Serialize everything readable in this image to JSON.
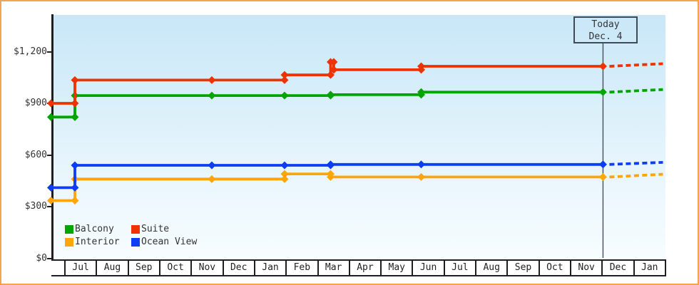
{
  "frame": {
    "border_color": "#f3a44c"
  },
  "chart_data": {
    "type": "line",
    "style": "step-after price history with forecast dashes",
    "grid": false,
    "x_axis": {
      "tick_labels": [
        "Jul",
        "Aug",
        "Sep",
        "Oct",
        "Nov",
        "Dec",
        "Jan",
        "Feb",
        "Mar",
        "Apr",
        "May",
        "Jun",
        "Jul",
        "Aug",
        "Sep",
        "Oct",
        "Nov",
        "Dec",
        "Jan"
      ]
    },
    "y_axis": {
      "tick_labels": [
        "$0",
        "$300",
        "$600",
        "$900",
        "$1,200"
      ],
      "tick_values": [
        0,
        300,
        600,
        900,
        1200
      ],
      "ylim": [
        0,
        1410
      ]
    },
    "today_marker": {
      "line1": "Today",
      "line2": "Dec. 4",
      "month_x": 16.99
    },
    "legend_position": "bottom-left",
    "series": [
      {
        "name": "Balcony",
        "color": "#00a500",
        "points": [
          [
            -0.416,
            820
          ],
          [
            0.337,
            945
          ],
          [
            4.655,
            945
          ],
          [
            6.949,
            945
          ],
          [
            8.4,
            950
          ],
          [
            11.257,
            965
          ],
          [
            16.99,
            965
          ]
        ],
        "forecast_end": [
          18.88,
          980
        ]
      },
      {
        "name": "Suite",
        "color": "#ee3300",
        "points": [
          [
            -0.416,
            900
          ],
          [
            0.337,
            1035
          ],
          [
            4.655,
            1035
          ],
          [
            6.949,
            1065
          ],
          [
            8.4,
            1140
          ],
          [
            8.5,
            1095
          ],
          [
            11.257,
            1115
          ],
          [
            16.99,
            1115
          ]
        ],
        "forecast_end": [
          18.88,
          1130
        ]
      },
      {
        "name": "Interior",
        "color": "#ffa508",
        "points": [
          [
            -0.416,
            335
          ],
          [
            0.337,
            460
          ],
          [
            4.655,
            460
          ],
          [
            6.949,
            490
          ],
          [
            8.4,
            472
          ],
          [
            11.257,
            472
          ],
          [
            16.99,
            472
          ]
        ],
        "forecast_end": [
          18.88,
          488
        ]
      },
      {
        "name": "Ocean View",
        "color": "#0d3df5",
        "points": [
          [
            -0.416,
            410
          ],
          [
            0.337,
            540
          ],
          [
            4.655,
            540
          ],
          [
            6.949,
            540
          ],
          [
            8.4,
            545
          ],
          [
            11.257,
            545
          ],
          [
            16.99,
            545
          ]
        ],
        "forecast_end": [
          18.88,
          557
        ]
      }
    ],
    "draw_order": [
      2,
      3,
      0,
      1
    ]
  }
}
